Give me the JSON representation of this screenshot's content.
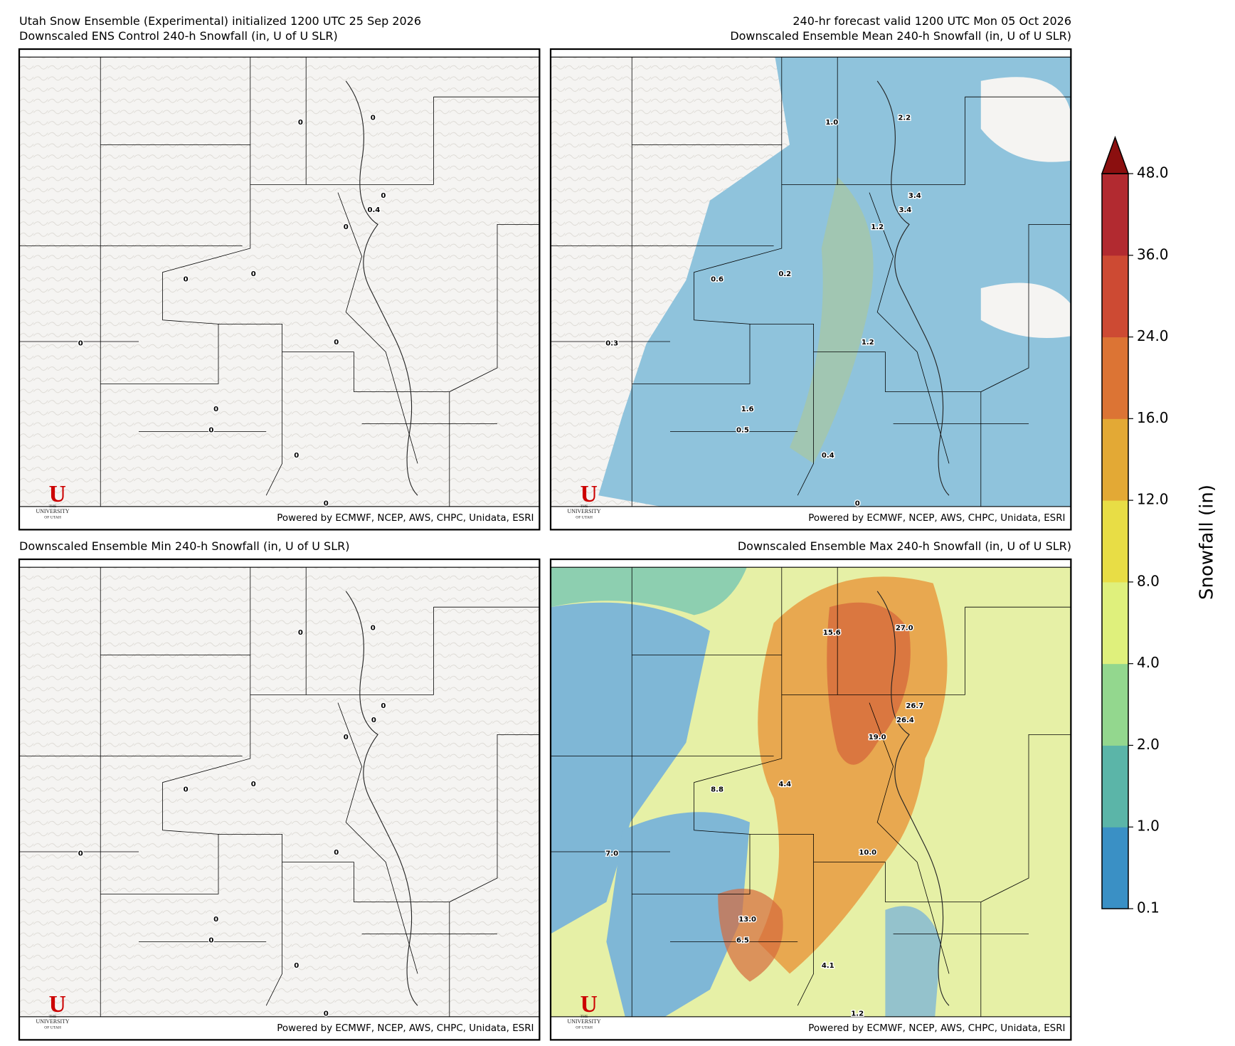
{
  "header": {
    "title_left": "Utah Snow Ensemble (Experimental) initialized 1200 UTC 25 Sep 2026",
    "title_right": "240-hr forecast valid 1200 UTC Mon 05 Oct 2026"
  },
  "credit": "Powered by ECMWF, NCEP, AWS, CHPC, Unidata, ESRI",
  "logo": {
    "mark": "U",
    "lines": [
      "THE",
      "UNIVERSITY",
      "OF UTAH"
    ]
  },
  "panels": [
    {
      "title": "Downscaled ENS Control 240-h Snowfall (in, U of U SLR)",
      "point_labels": [
        "0",
        "0",
        "0",
        "0.4",
        "0",
        "0",
        "0",
        "0",
        "0",
        "0",
        "0",
        "0",
        "0"
      ]
    },
    {
      "title": "Downscaled Ensemble Mean 240-h Snowfall (in, U of U SLR)",
      "point_labels": [
        "1.0",
        "2.2",
        "3.4",
        "3.4",
        "1.2",
        "0.6",
        "0.2",
        "0.3",
        "1.2",
        "1.6",
        "0.5",
        "0.4",
        "0"
      ]
    },
    {
      "title": "Downscaled Ensemble Min 240-h Snowfall (in, U of U SLR)",
      "point_labels": [
        "0",
        "0",
        "0",
        "0",
        "0",
        "0",
        "0",
        "0",
        "0",
        "0",
        "0",
        "0",
        "0"
      ]
    },
    {
      "title": "Downscaled Ensemble Max 240-h Snowfall (in, U of U SLR)",
      "point_labels": [
        "15.6",
        "27.0",
        "26.7",
        "26.4",
        "19.0",
        "8.8",
        "4.4",
        "7.0",
        "10.0",
        "13.0",
        "6.5",
        "4.1",
        "1.2"
      ]
    }
  ],
  "colorbar": {
    "label": "Snowfall (in)",
    "ticks": [
      {
        "value": 0.1,
        "label": "0.1"
      },
      {
        "value": 1,
        "label": "1.0"
      },
      {
        "value": 2,
        "label": "2.0"
      },
      {
        "value": 4,
        "label": "4.0"
      },
      {
        "value": 8,
        "label": "8.0"
      },
      {
        "value": 12,
        "label": "12.0"
      },
      {
        "value": 16,
        "label": "16.0"
      },
      {
        "value": 24,
        "label": "24.0"
      },
      {
        "value": 36,
        "label": "36.0"
      },
      {
        "value": 48,
        "label": "48.0"
      }
    ],
    "colors": [
      "#3a90c5",
      "#5bb5a8",
      "#93d78e",
      "#dff07c",
      "#e8dd45",
      "#e3a935",
      "#dc7434",
      "#cd4a33",
      "#b22a30"
    ],
    "extend_color": "#8b0f0f"
  }
}
